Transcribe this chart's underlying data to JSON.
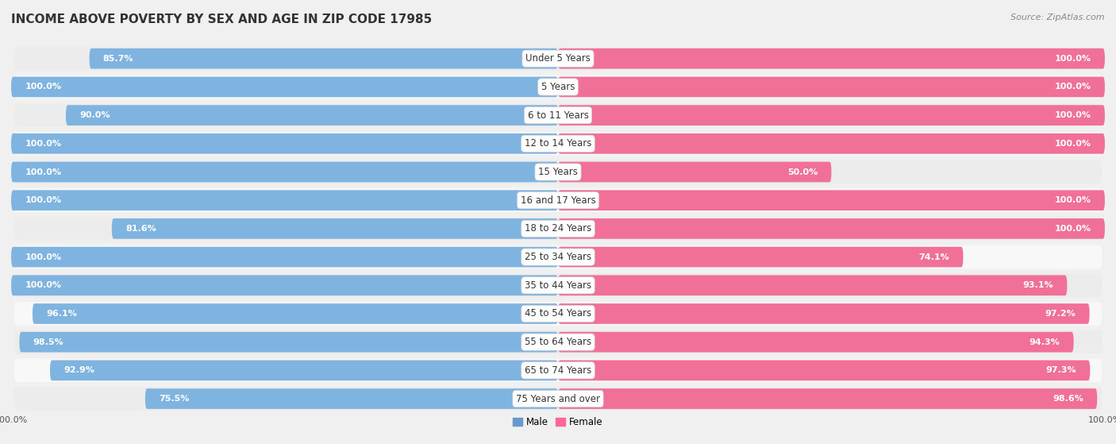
{
  "title": "INCOME ABOVE POVERTY BY SEX AND AGE IN ZIP CODE 17985",
  "source": "Source: ZipAtlas.com",
  "categories": [
    "Under 5 Years",
    "5 Years",
    "6 to 11 Years",
    "12 to 14 Years",
    "15 Years",
    "16 and 17 Years",
    "18 to 24 Years",
    "25 to 34 Years",
    "35 to 44 Years",
    "45 to 54 Years",
    "55 to 64 Years",
    "65 to 74 Years",
    "75 Years and over"
  ],
  "male_values": [
    85.7,
    100.0,
    90.0,
    100.0,
    100.0,
    100.0,
    81.6,
    100.0,
    100.0,
    96.1,
    98.5,
    92.9,
    75.5
  ],
  "female_values": [
    100.0,
    100.0,
    100.0,
    100.0,
    50.0,
    100.0,
    100.0,
    74.1,
    93.1,
    97.2,
    94.3,
    97.3,
    98.6
  ],
  "male_color": "#7fb3e0",
  "female_color": "#f07098",
  "background_row_odd": "#ececec",
  "background_row_even": "#f8f8f8",
  "bar_bg_color": "#e0e0e8",
  "title_fontsize": 11,
  "label_fontsize": 8,
  "tick_fontsize": 8,
  "source_fontsize": 8,
  "legend_male_color": "#6699cc",
  "legend_female_color": "#ff6699",
  "background_color": "#f0f0f0"
}
